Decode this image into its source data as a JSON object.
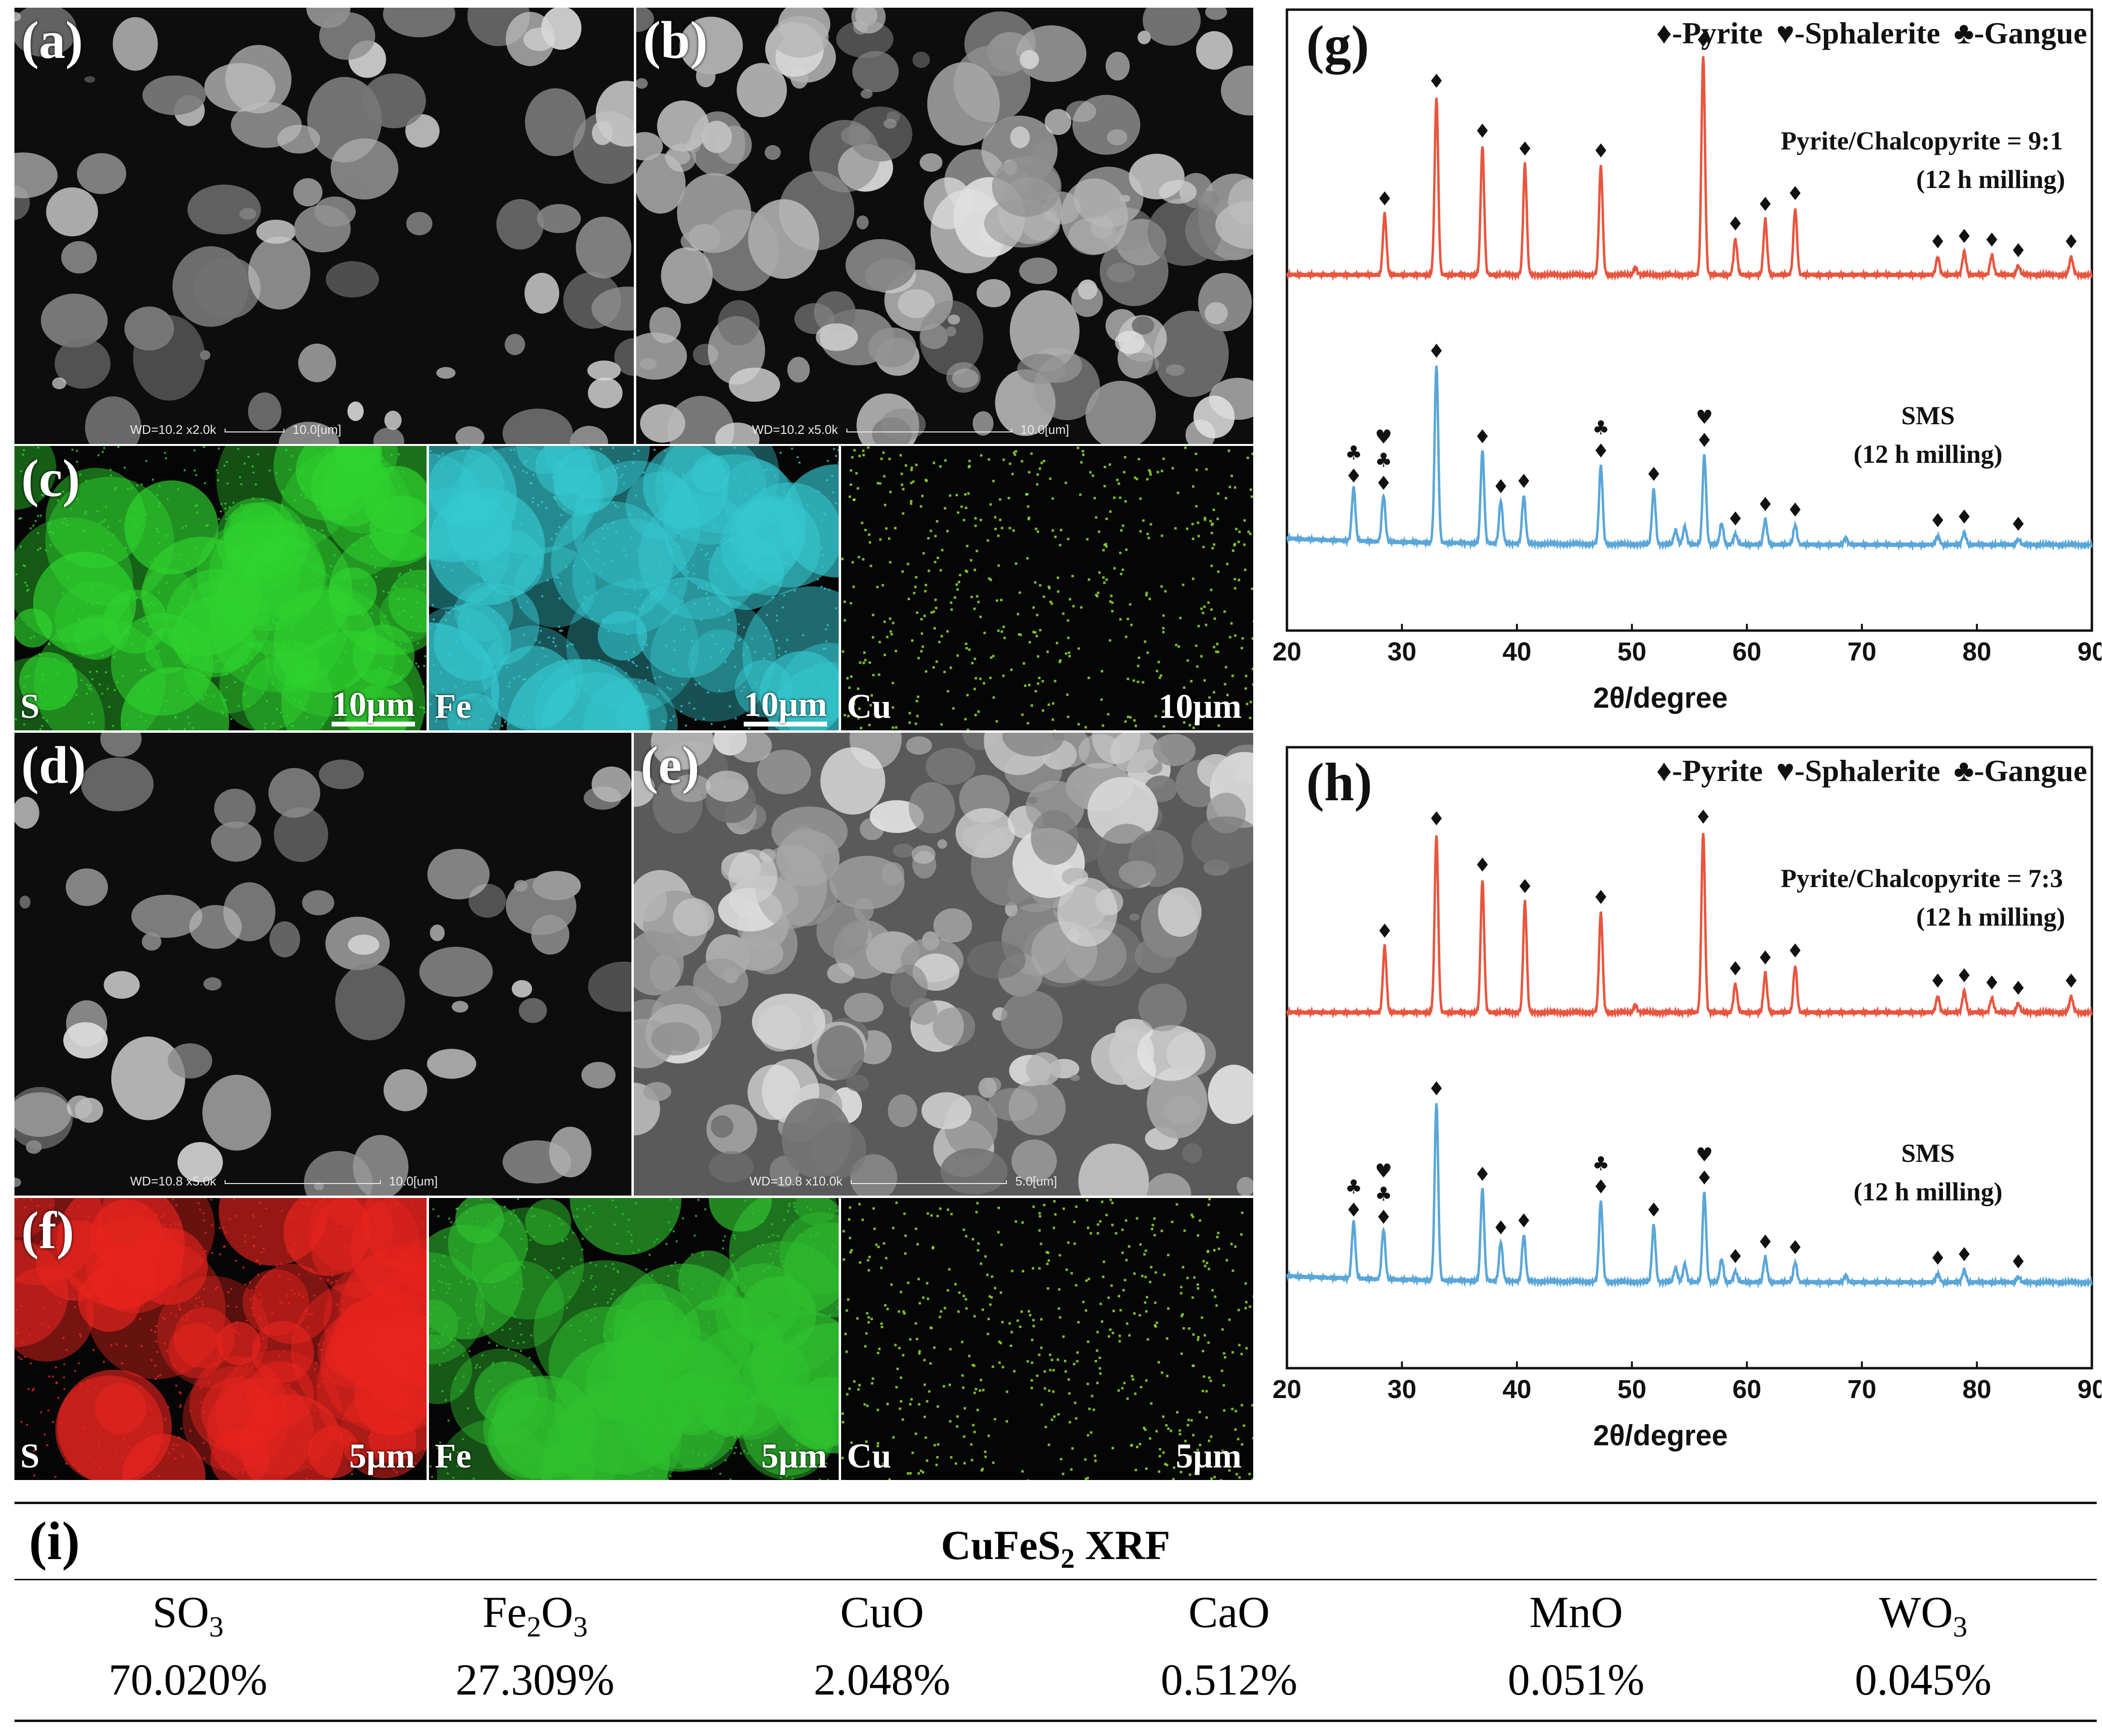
{
  "sem": {
    "a": {
      "label": "(a)",
      "info": "WD=10.2   x2.0k",
      "scale": "10.0[um]"
    },
    "b": {
      "label": "(b)",
      "info": "WD=10.2   x5.0k",
      "scale": "10.0[um]"
    },
    "d": {
      "label": "(d)",
      "info": "WD=10.8   x5.0k",
      "scale": "10.0[um]"
    },
    "e": {
      "label": "(e)",
      "info": "WD=10.8   x10.0k",
      "scale": "5.0[um]"
    }
  },
  "eds_c": {
    "label": "(c)",
    "maps": [
      {
        "element": "S",
        "scale": "10μm",
        "color": "#2fd42f"
      },
      {
        "element": "Fe",
        "scale": "10μm",
        "color": "#35c8d0"
      },
      {
        "element": "Cu",
        "scale": "10μm",
        "color": "#8fe22a"
      }
    ]
  },
  "eds_f": {
    "label": "(f)",
    "maps": [
      {
        "element": "S",
        "scale": "5μm",
        "color": "#e8241f"
      },
      {
        "element": "Fe",
        "scale": "5μm",
        "color": "#2fc02f"
      },
      {
        "element": "Cu",
        "scale": "5μm",
        "color": "#8fe22a"
      }
    ]
  },
  "chart_data": [
    {
      "type": "line",
      "panel": "(g)",
      "legend": [
        "♦-Pyrite",
        "♥-Sphalerite",
        "♣-Gangue"
      ],
      "xlabel": "2θ/degree",
      "xlim": [
        20,
        90
      ],
      "xticks": [
        20,
        30,
        40,
        50,
        60,
        70,
        80,
        90
      ],
      "series": [
        {
          "name": "Pyrite/Chalcopyrite = 9:1",
          "name2": "(12 h milling)",
          "color": "#e8553f",
          "peaks": [
            [
              28.5,
              0.34
            ],
            [
              33.0,
              1.0
            ],
            [
              37.0,
              0.72
            ],
            [
              40.7,
              0.62
            ],
            [
              47.3,
              0.61
            ],
            [
              50.3,
              0.04
            ],
            [
              56.2,
              1.23
            ],
            [
              59.0,
              0.2
            ],
            [
              61.6,
              0.31
            ],
            [
              64.2,
              0.37
            ],
            [
              76.6,
              0.1
            ],
            [
              78.9,
              0.13
            ],
            [
              81.3,
              0.11
            ],
            [
              83.6,
              0.05
            ],
            [
              88.2,
              0.1
            ]
          ],
          "markers": [
            [
              28.5,
              "♦"
            ],
            [
              33.0,
              "♦"
            ],
            [
              37.0,
              "♦"
            ],
            [
              40.7,
              "♦"
            ],
            [
              47.3,
              "♦"
            ],
            [
              56.2,
              "♦"
            ],
            [
              59.0,
              "♦"
            ],
            [
              61.6,
              "♦"
            ],
            [
              64.2,
              "♦"
            ],
            [
              76.6,
              "♦"
            ],
            [
              78.9,
              "♦"
            ],
            [
              81.3,
              "♦"
            ],
            [
              83.6,
              "♦"
            ],
            [
              88.2,
              "♦"
            ]
          ]
        },
        {
          "name": "SMS",
          "name2": "(12 h milling)",
          "color": "#5aa6d8",
          "peaks": [
            [
              25.8,
              0.3
            ],
            [
              28.4,
              0.26
            ],
            [
              33.0,
              1.0
            ],
            [
              37.0,
              0.52
            ],
            [
              38.6,
              0.24
            ],
            [
              40.6,
              0.27
            ],
            [
              47.3,
              0.44
            ],
            [
              51.9,
              0.31
            ],
            [
              53.8,
              0.08
            ],
            [
              54.6,
              0.1
            ],
            [
              56.3,
              0.5
            ],
            [
              57.8,
              0.12
            ],
            [
              59.0,
              0.06
            ],
            [
              61.6,
              0.14
            ],
            [
              64.2,
              0.11
            ],
            [
              68.6,
              0.04
            ],
            [
              76.6,
              0.05
            ],
            [
              78.9,
              0.07
            ],
            [
              83.6,
              0.03
            ]
          ],
          "markers": [
            [
              25.8,
              "♦♣"
            ],
            [
              28.4,
              "♦♣♥"
            ],
            [
              33.0,
              "♦"
            ],
            [
              37.0,
              "♦"
            ],
            [
              38.6,
              "♦"
            ],
            [
              40.6,
              "♦"
            ],
            [
              47.3,
              "♦♣"
            ],
            [
              51.9,
              "♦"
            ],
            [
              56.3,
              "♦♥"
            ],
            [
              59.0,
              "♦"
            ],
            [
              61.6,
              "♦"
            ],
            [
              64.2,
              "♦"
            ],
            [
              76.6,
              "♦"
            ],
            [
              78.9,
              "♦"
            ],
            [
              83.6,
              "♦"
            ]
          ]
        }
      ]
    },
    {
      "type": "line",
      "panel": "(h)",
      "legend": [
        "♦-Pyrite",
        "♥-Sphalerite",
        "♣-Gangue"
      ],
      "xlabel": "2θ/degree",
      "xlim": [
        20,
        90
      ],
      "xticks": [
        20,
        30,
        40,
        50,
        60,
        70,
        80,
        90
      ],
      "series": [
        {
          "name": "Pyrite/Chalcopyrite = 7:3",
          "name2": "(12 h milling)",
          "color": "#e8553f",
          "peaks": [
            [
              28.5,
              0.37
            ],
            [
              33.0,
              1.0
            ],
            [
              37.0,
              0.74
            ],
            [
              40.7,
              0.62
            ],
            [
              47.3,
              0.56
            ],
            [
              50.3,
              0.04
            ],
            [
              56.2,
              1.01
            ],
            [
              59.0,
              0.16
            ],
            [
              61.6,
              0.22
            ],
            [
              64.2,
              0.26
            ],
            [
              76.6,
              0.09
            ],
            [
              78.9,
              0.12
            ],
            [
              81.3,
              0.08
            ],
            [
              83.6,
              0.05
            ],
            [
              88.2,
              0.09
            ]
          ],
          "markers": [
            [
              28.5,
              "♦"
            ],
            [
              33.0,
              "♦"
            ],
            [
              37.0,
              "♦"
            ],
            [
              40.7,
              "♦"
            ],
            [
              47.3,
              "♦"
            ],
            [
              56.2,
              "♦"
            ],
            [
              59.0,
              "♦"
            ],
            [
              61.6,
              "♦"
            ],
            [
              64.2,
              "♦"
            ],
            [
              76.6,
              "♦"
            ],
            [
              78.9,
              "♦"
            ],
            [
              81.3,
              "♦"
            ],
            [
              83.6,
              "♦"
            ],
            [
              88.2,
              "♦"
            ]
          ]
        },
        {
          "name": "SMS",
          "name2": "(12 h milling)",
          "color": "#5aa6d8",
          "peaks": [
            [
              25.8,
              0.32
            ],
            [
              28.4,
              0.28
            ],
            [
              33.0,
              1.0
            ],
            [
              37.0,
              0.52
            ],
            [
              38.6,
              0.22
            ],
            [
              40.6,
              0.26
            ],
            [
              47.3,
              0.45
            ],
            [
              51.9,
              0.32
            ],
            [
              53.8,
              0.08
            ],
            [
              54.6,
              0.1
            ],
            [
              56.3,
              0.5
            ],
            [
              57.8,
              0.13
            ],
            [
              59.0,
              0.06
            ],
            [
              61.6,
              0.14
            ],
            [
              64.2,
              0.11
            ],
            [
              68.6,
              0.04
            ],
            [
              76.6,
              0.05
            ],
            [
              78.9,
              0.07
            ],
            [
              83.6,
              0.03
            ]
          ],
          "markers": [
            [
              25.8,
              "♦♣"
            ],
            [
              28.4,
              "♦♣♥"
            ],
            [
              33.0,
              "♦"
            ],
            [
              37.0,
              "♦"
            ],
            [
              38.6,
              "♦"
            ],
            [
              40.6,
              "♦"
            ],
            [
              47.3,
              "♦♣"
            ],
            [
              51.9,
              "♦"
            ],
            [
              56.3,
              "♦♥"
            ],
            [
              59.0,
              "♦"
            ],
            [
              61.6,
              "♦"
            ],
            [
              64.2,
              "♦"
            ],
            [
              76.6,
              "♦"
            ],
            [
              78.9,
              "♦"
            ],
            [
              83.6,
              "♦"
            ]
          ]
        }
      ]
    }
  ],
  "xrf": {
    "label": "(i)",
    "title_main": "CuFeS",
    "title_sub": "2",
    "title_tail": " XRF",
    "compounds": [
      {
        "base": "SO",
        "sub": "3",
        "rest": "",
        "value": "70.020%"
      },
      {
        "base": "Fe",
        "sub": "2",
        "rest": "O",
        "sub2": "3",
        "value": "27.309%"
      },
      {
        "base": "CuO",
        "sub": "",
        "rest": "",
        "value": "2.048%"
      },
      {
        "base": "CaO",
        "sub": "",
        "rest": "",
        "value": "0.512%"
      },
      {
        "base": "MnO",
        "sub": "",
        "rest": "",
        "value": "0.051%"
      },
      {
        "base": "WO",
        "sub": "3",
        "rest": "",
        "value": "0.045%"
      }
    ]
  }
}
